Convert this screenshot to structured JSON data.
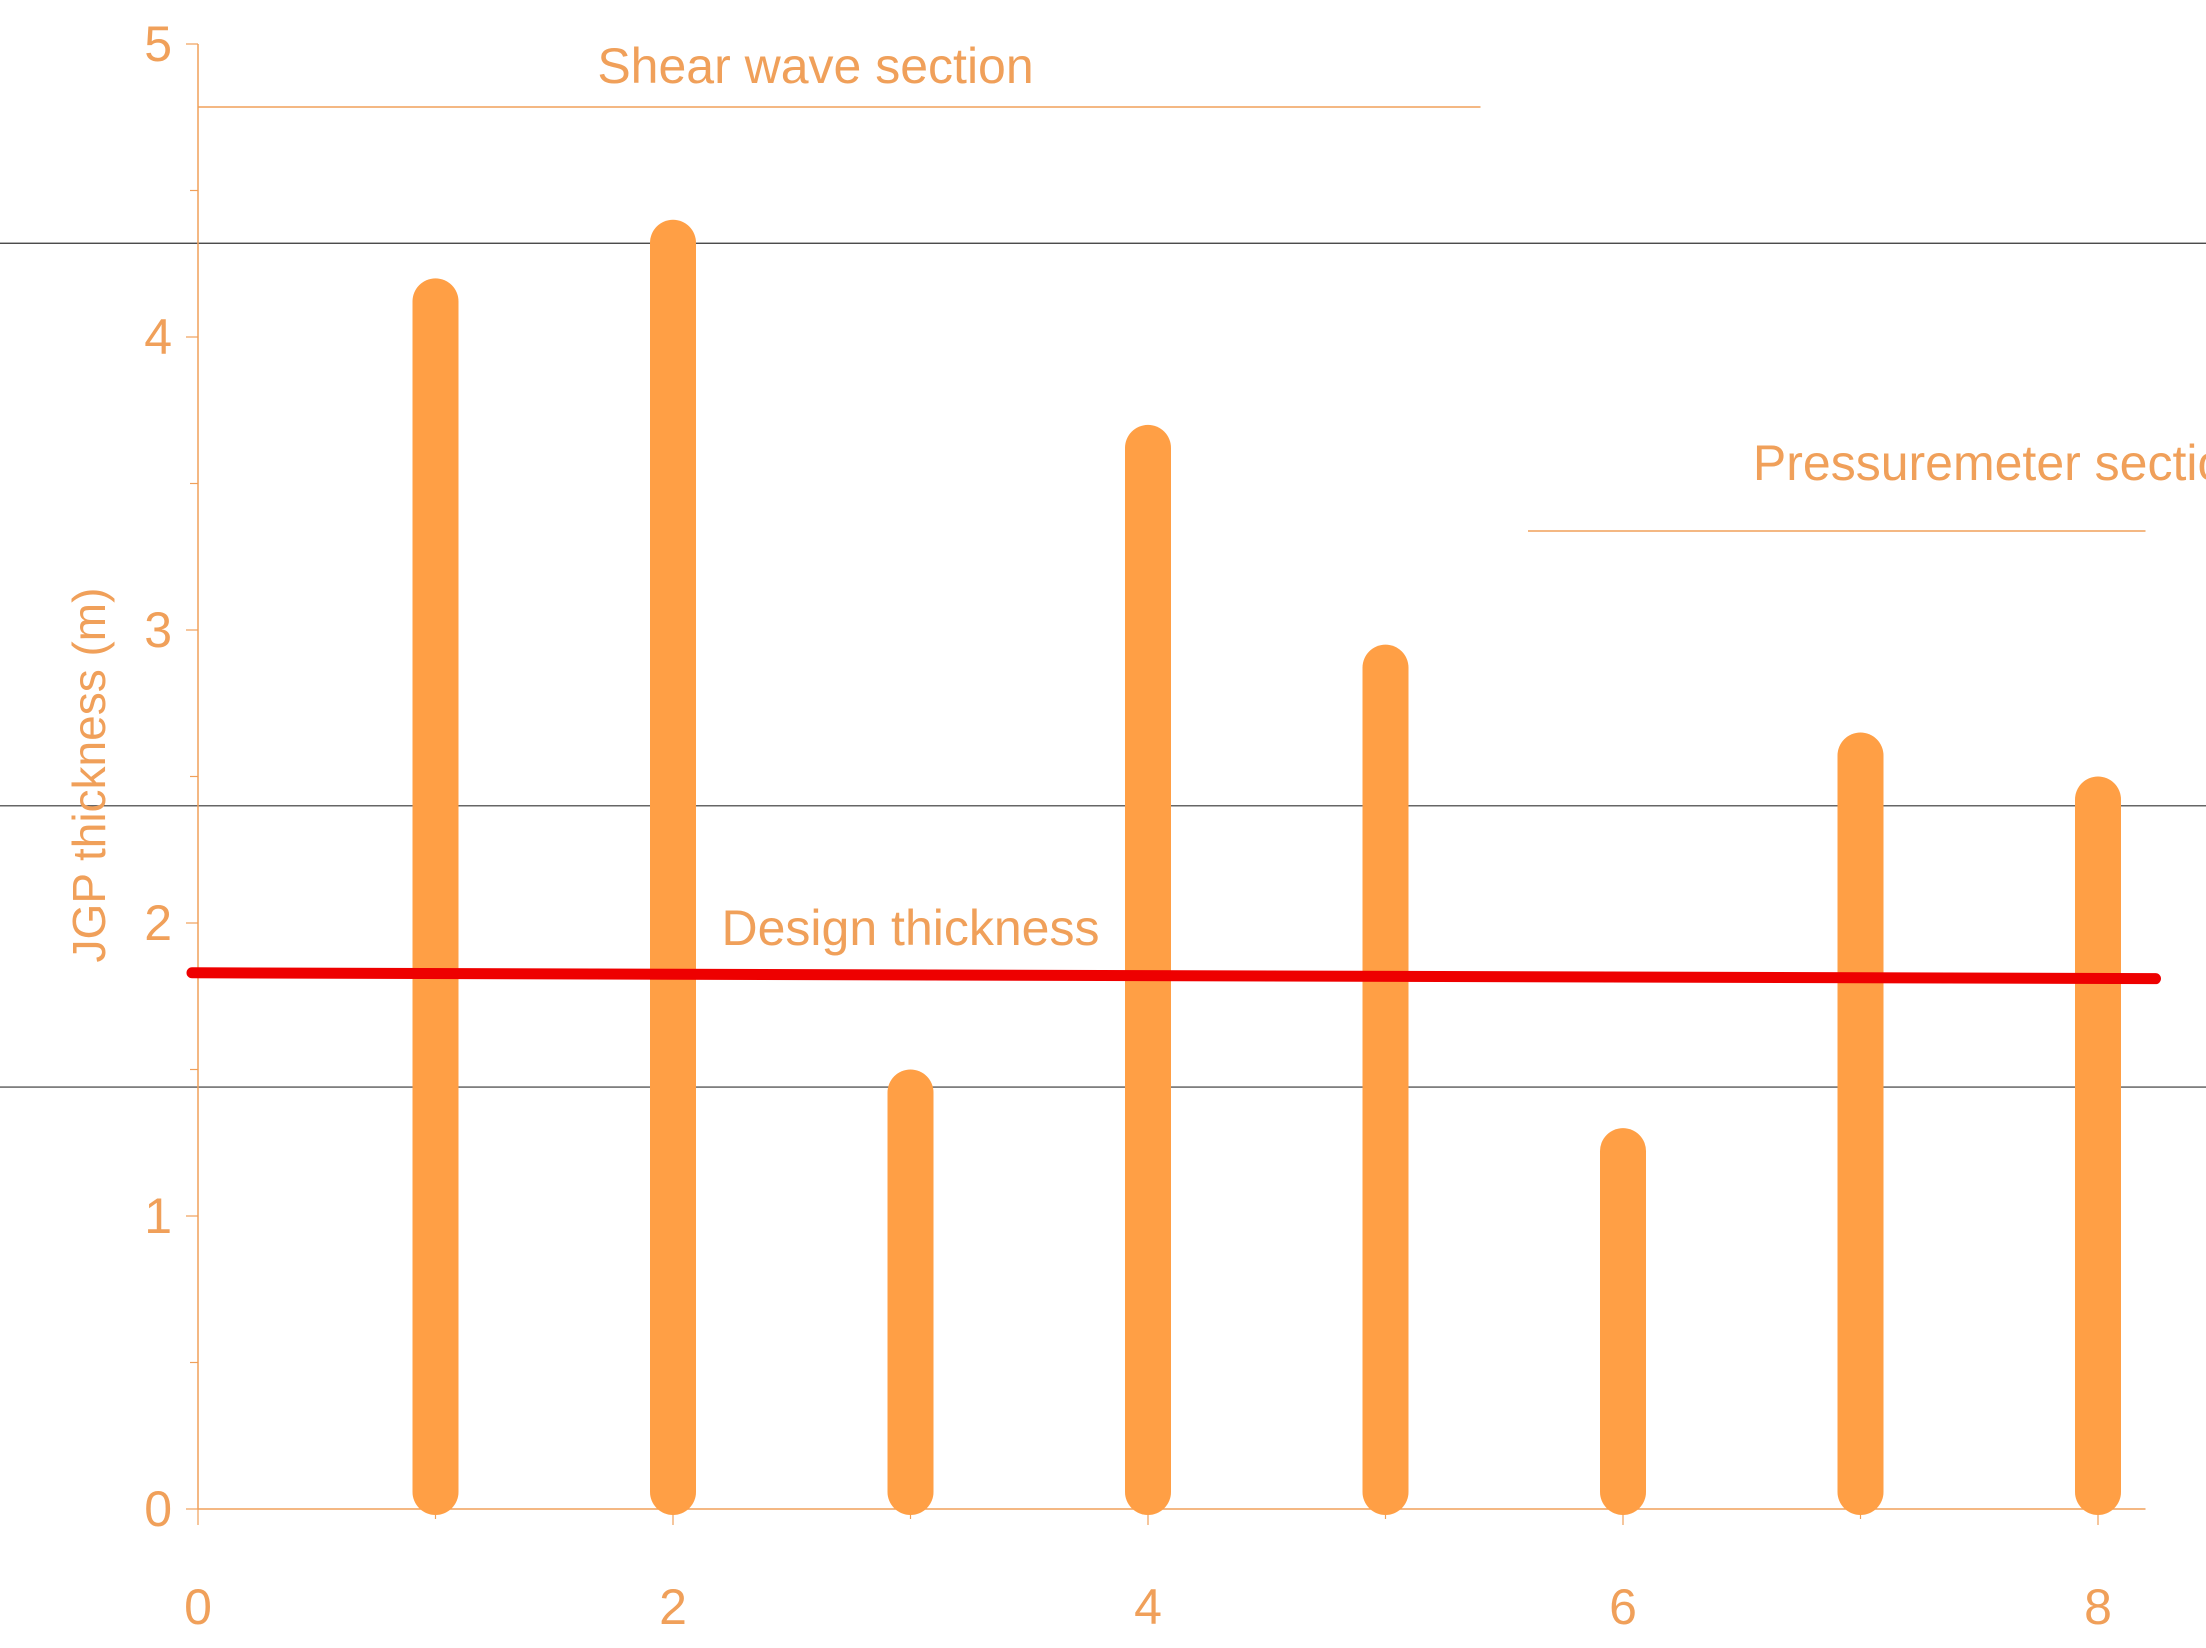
{
  "colors": {
    "bar": "#ff9f45",
    "text": "#f0a05a",
    "axis": "#f0a05a",
    "hline": "#333333",
    "design_line": "#ee0000",
    "background": "#ffffff"
  },
  "chart_data": {
    "type": "bar",
    "title": "",
    "xlabel": "",
    "ylabel": "JGP thickness (m)",
    "xlim": [
      0,
      8.2
    ],
    "ylim": [
      0,
      5
    ],
    "x_ticks": [
      "0",
      "2",
      "4",
      "6",
      "8"
    ],
    "y_ticks": [
      "0",
      "1",
      "2",
      "3",
      "4",
      "5"
    ],
    "categories": [
      "1",
      "2",
      "3",
      "4",
      "5",
      "6",
      "7",
      "8"
    ],
    "series": [
      {
        "values": [
          4.2,
          4.4,
          1.5,
          3.7,
          2.95,
          1.3,
          2.65,
          2.5
        ]
      }
    ],
    "design_thickness": {
      "label": "Design thickness",
      "y_start": 1.83,
      "y_end": 1.81
    },
    "reference_lines_y": [
      4.32,
      2.4,
      1.44
    ],
    "annotations": {
      "shear_wave": "Shear wave section",
      "pressuremeter": "Pressuremeter section"
    },
    "grid": false,
    "legend": "none"
  }
}
